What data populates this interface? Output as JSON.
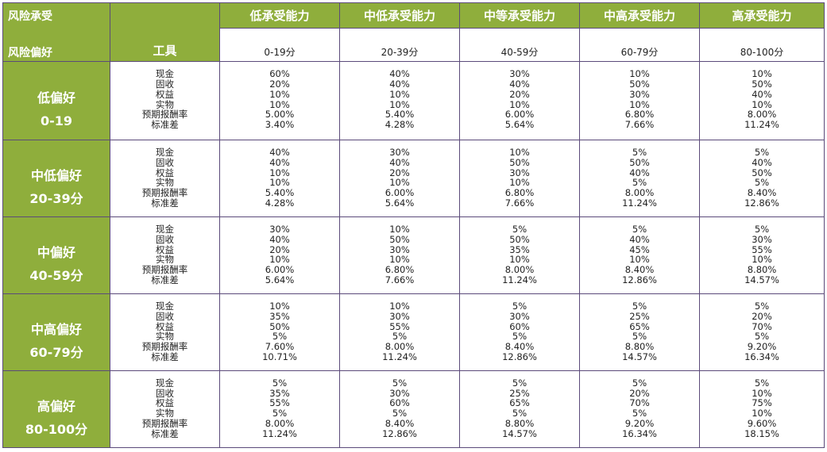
{
  "header": {
    "corner_risk_capacity": "风险承受",
    "corner_risk_preference": "风险偏好",
    "tool_label": "工具",
    "capacities": [
      {
        "label": "低承受能力",
        "score": "0-19分"
      },
      {
        "label": "中低承受能力",
        "score": "20-39分"
      },
      {
        "label": "中等承受能力",
        "score": "40-59分"
      },
      {
        "label": "中高承受能力",
        "score": "60-79分"
      },
      {
        "label": "高承受能力",
        "score": "80-100分"
      }
    ]
  },
  "tools": [
    "现金",
    "固收",
    "权益",
    "实物",
    "预期报酬率",
    "标准差"
  ],
  "rows": [
    {
      "name": "低偏好",
      "range": "0-19",
      "cells": [
        [
          "60%",
          "20%",
          "10%",
          "10%",
          "5.00%",
          "3.40%"
        ],
        [
          "40%",
          "40%",
          "10%",
          "10%",
          "5.40%",
          "4.28%"
        ],
        [
          "30%",
          "40%",
          "20%",
          "10%",
          "6.00%",
          "5.64%"
        ],
        [
          "10%",
          "50%",
          "30%",
          "10%",
          "6.80%",
          "7.66%"
        ],
        [
          "10%",
          "50%",
          "40%",
          "10%",
          "8.00%",
          "11.24%"
        ]
      ]
    },
    {
      "name": "中低偏好",
      "range": "20-39分",
      "cells": [
        [
          "40%",
          "40%",
          "10%",
          "10%",
          "5.40%",
          "4.28%"
        ],
        [
          "30%",
          "40%",
          "20%",
          "10%",
          "6.00%",
          "5.64%"
        ],
        [
          "10%",
          "50%",
          "30%",
          "10%",
          "6.80%",
          "7.66%"
        ],
        [
          "5%",
          "50%",
          "40%",
          "5%",
          "8.00%",
          "11.24%"
        ],
        [
          "5%",
          "40%",
          "50%",
          "5%",
          "8.40%",
          "12.86%"
        ]
      ]
    },
    {
      "name": "中偏好",
      "range": "40-59分",
      "cells": [
        [
          "30%",
          "40%",
          "20%",
          "10%",
          "6.00%",
          "5.64%"
        ],
        [
          "10%",
          "50%",
          "30%",
          "10%",
          "6.80%",
          "7.66%"
        ],
        [
          "5%",
          "50%",
          "35%",
          "10%",
          "8.00%",
          "11.24%"
        ],
        [
          "5%",
          "40%",
          "45%",
          "10%",
          "8.40%",
          "12.86%"
        ],
        [
          "5%",
          "30%",
          "55%",
          "10%",
          "8.80%",
          "14.57%"
        ]
      ]
    },
    {
      "name": "中高偏好",
      "range": "60-79分",
      "cells": [
        [
          "10%",
          "35%",
          "50%",
          "5%",
          "7.60%",
          "10.71%"
        ],
        [
          "10%",
          "30%",
          "55%",
          "5%",
          "8.00%",
          "11.24%"
        ],
        [
          "5%",
          "30%",
          "60%",
          "5%",
          "8.40%",
          "12.86%"
        ],
        [
          "5%",
          "25%",
          "65%",
          "5%",
          "8.80%",
          "14.57%"
        ],
        [
          "5%",
          "20%",
          "70%",
          "5%",
          "9.20%",
          "16.34%"
        ]
      ]
    },
    {
      "name": "高偏好",
      "range": "80-100分",
      "cells": [
        [
          "5%",
          "35%",
          "55%",
          "5%",
          "8.00%",
          "11.24%"
        ],
        [
          "5%",
          "30%",
          "60%",
          "5%",
          "8.40%",
          "12.86%"
        ],
        [
          "5%",
          "25%",
          "65%",
          "5%",
          "8.80%",
          "14.57%"
        ],
        [
          "5%",
          "20%",
          "70%",
          "5%",
          "9.20%",
          "16.34%"
        ],
        [
          "5%",
          "10%",
          "75%",
          "10%",
          "9.60%",
          "18.15%"
        ]
      ]
    }
  ]
}
